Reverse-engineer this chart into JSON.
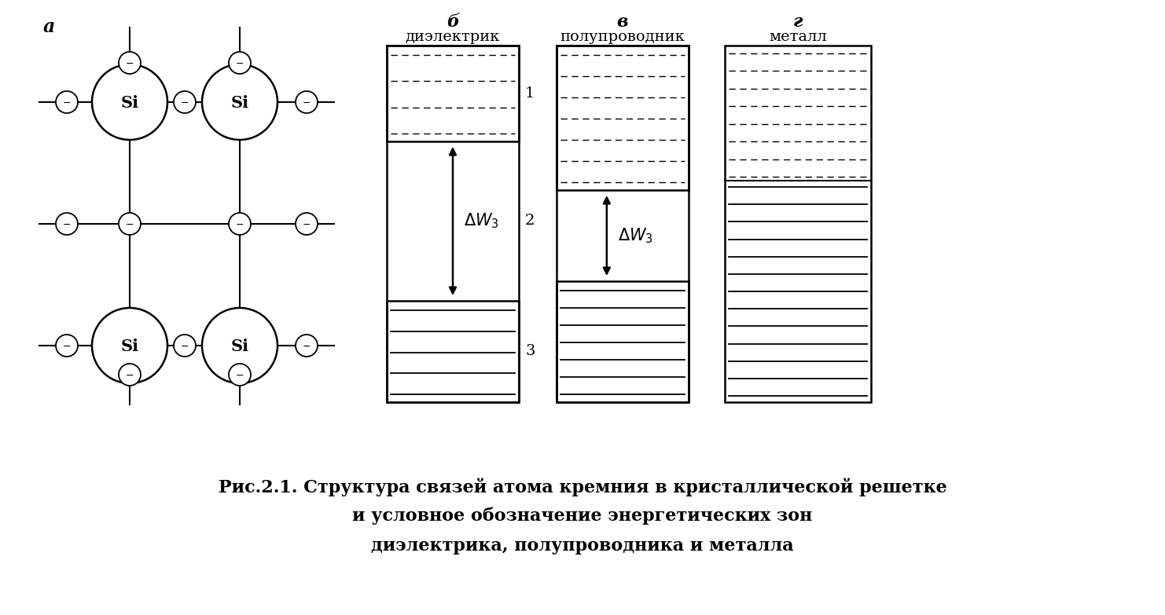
{
  "fig_width": 14.82,
  "fig_height": 7.83,
  "bg_color": "#ffffff",
  "label_a": "a",
  "label_b": "б",
  "label_v": "в",
  "label_g": "г",
  "label_dielektrik": "диэлектрик",
  "label_poluprovodnik": "полупроводник",
  "label_metall": "металл",
  "label_1": "1",
  "label_2": "2",
  "label_3": "3",
  "caption_line1": "Рис.2.1. Структура связей атома кремния в кристаллической решетке",
  "caption_line2": "и условное обозначение энергетических зон",
  "caption_line3": "диэлектрика, полупроводника и металла"
}
